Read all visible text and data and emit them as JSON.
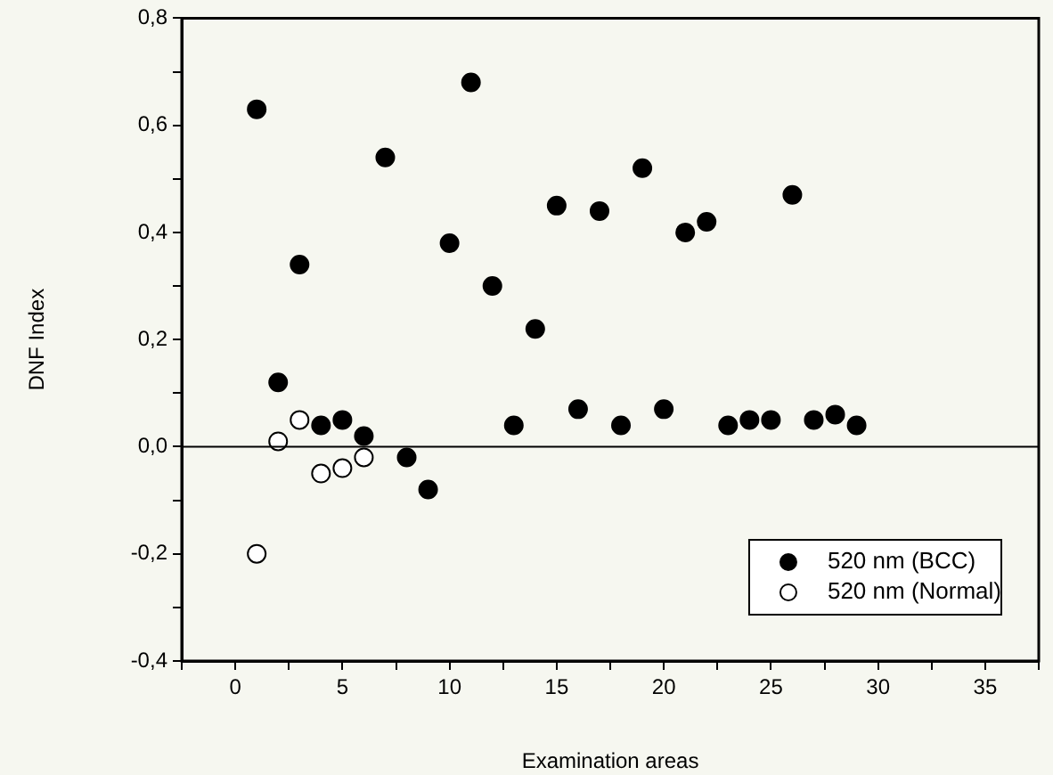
{
  "chart_data": {
    "type": "scatter",
    "xlabel": "Examination areas",
    "ylabel": "DNF Index",
    "xlim": [
      -2.5,
      37.5
    ],
    "ylim": [
      -0.4,
      0.8
    ],
    "xticks": [
      {
        "value": -2.5,
        "label": null
      },
      0,
      {
        "value": 2.5,
        "label": null
      },
      5,
      {
        "value": 7.5,
        "label": null
      },
      10,
      {
        "value": 12.5,
        "label": null
      },
      15,
      {
        "value": 17.5,
        "label": null
      },
      20,
      {
        "value": 22.5,
        "label": null
      },
      25,
      {
        "value": 27.5,
        "label": null
      },
      30,
      {
        "value": 32.5,
        "label": null
      },
      35,
      {
        "value": 37.5,
        "label": null
      }
    ],
    "yticks": [
      {
        "value": -0.4,
        "label": "-0,4"
      },
      {
        "value": -0.3,
        "label": null
      },
      {
        "value": -0.2,
        "label": "-0,2"
      },
      {
        "value": -0.1,
        "label": null
      },
      {
        "value": 0,
        "label": "0,0"
      },
      {
        "value": 0.1,
        "label": null
      },
      {
        "value": 0.2,
        "label": "0,2"
      },
      {
        "value": 0.3,
        "label": null
      },
      {
        "value": 0.4,
        "label": "0,4"
      },
      {
        "value": 0.5,
        "label": null
      },
      {
        "value": 0.6,
        "label": "0,6"
      },
      {
        "value": 0.7,
        "label": null
      },
      {
        "value": 0.8,
        "label": "0,8"
      }
    ],
    "grid": false,
    "legend": "bottom right",
    "marker": "circle",
    "ref_lines": [
      {
        "axis": "y",
        "value": 0,
        "color": "#000000"
      }
    ],
    "series": [
      {
        "name": "520 nm (BCC)",
        "color": "#000000",
        "x": [
          1,
          2,
          3,
          4,
          5,
          6,
          7,
          8,
          9,
          10,
          11,
          12,
          13,
          14,
          15,
          16,
          17,
          18,
          19,
          20,
          21,
          22,
          23,
          24,
          25,
          26,
          27,
          28,
          29
        ],
        "values": [
          0.63,
          0.12,
          0.34,
          0.04,
          0.05,
          0.02,
          0.54,
          -0.02,
          -0.08,
          0.38,
          0.68,
          0.3,
          0.04,
          0.22,
          0.45,
          0.07,
          0.44,
          0.04,
          0.52,
          0.07,
          0.4,
          0.42,
          0.04,
          0.05,
          0.05,
          0.47,
          0.05,
          0.06,
          0.04
        ]
      },
      {
        "name": "520 nm (Normal)",
        "color": "#ffffff",
        "x": [
          1,
          2,
          3,
          4,
          5,
          6
        ],
        "values": [
          -0.2,
          0.01,
          0.05,
          -0.05,
          -0.04,
          -0.02
        ]
      }
    ]
  }
}
